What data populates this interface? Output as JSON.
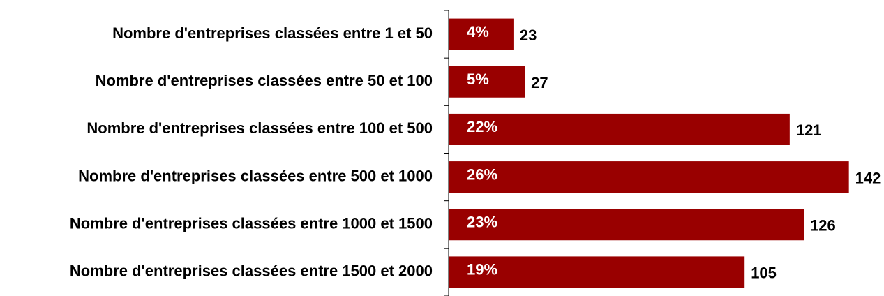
{
  "chart_data": {
    "type": "hbar",
    "categories": [
      "Nombre d'entreprises classées entre 1 et 50",
      "Nombre d'entreprises classées entre 50 et 100",
      "Nombre d'entreprises classées entre 100 et 500",
      "Nombre d'entreprises classées entre 500 et 1000",
      "Nombre d'entreprises classées entre 1000 et 1500",
      "Nombre d'entreprises classées entre 1500 et 2000"
    ],
    "values": [
      23,
      27,
      121,
      142,
      126,
      105
    ],
    "shares": [
      4,
      5,
      22,
      26,
      23,
      19
    ],
    "share_labels": [
      "4%",
      "5%",
      "22%",
      "26%",
      "23%",
      "19%"
    ],
    "color": "#990000",
    "xlim": [
      0,
      150
    ]
  }
}
